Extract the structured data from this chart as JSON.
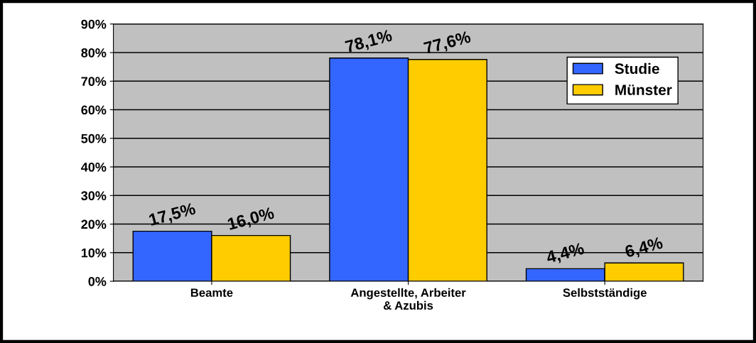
{
  "chart_data": {
    "type": "bar",
    "categories": [
      "Beamte",
      "Angestellte, Arbeiter\n& Azubis",
      "Selbstständige"
    ],
    "series": [
      {
        "name": "Studie",
        "color": "#3366ff",
        "values": [
          17.5,
          78.1,
          4.4
        ],
        "value_labels": [
          "17,5%",
          "78,1%",
          "4,4%"
        ]
      },
      {
        "name": "Münster",
        "color": "#ffcc00",
        "values": [
          16.0,
          77.6,
          6.4
        ],
        "value_labels": [
          "16,0%",
          "77,6%",
          "6,4%"
        ]
      }
    ],
    "ylim": [
      0,
      90
    ],
    "yticks": [
      {
        "value": 0,
        "label": "0%"
      },
      {
        "value": 10,
        "label": "10%"
      },
      {
        "value": 20,
        "label": "20%"
      },
      {
        "value": 30,
        "label": "30%"
      },
      {
        "value": 40,
        "label": "40%"
      },
      {
        "value": 50,
        "label": "50%"
      },
      {
        "value": 60,
        "label": "60%"
      },
      {
        "value": 70,
        "label": "70%"
      },
      {
        "value": 80,
        "label": "80%"
      },
      {
        "value": 90,
        "label": "90%"
      }
    ],
    "grid": "y",
    "legend": "top right"
  }
}
